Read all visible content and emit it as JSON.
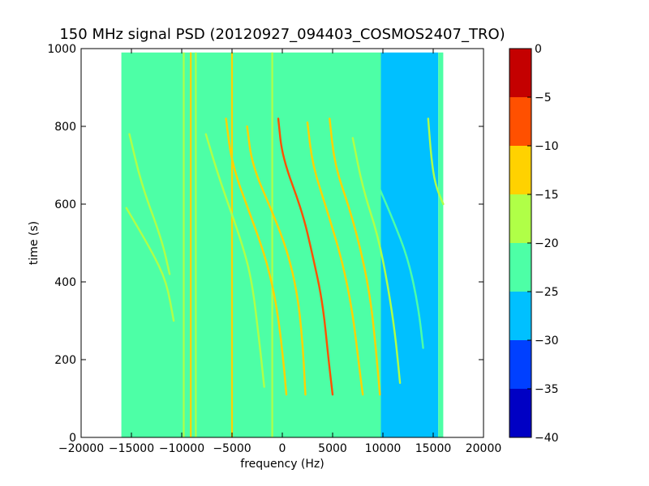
{
  "chart_data": {
    "type": "heatmap",
    "title": "150 MHz signal PSD (20120927_094403_COSMOS2407_TRO)",
    "xlabel": "frequency (Hz)",
    "ylabel": "time (s)",
    "xlim": [
      -20000,
      20000
    ],
    "ylim": [
      0,
      1000
    ],
    "x_ticks": [
      -20000,
      -15000,
      -10000,
      -5000,
      0,
      5000,
      10000,
      15000,
      20000
    ],
    "y_ticks": [
      0,
      200,
      400,
      600,
      800,
      1000
    ],
    "data_extent": {
      "x": [
        -16000,
        16000
      ],
      "y": [
        0,
        990
      ]
    },
    "grid": false,
    "colorbar": {
      "ticks": [
        0,
        -5,
        -10,
        -15,
        -20,
        -25,
        -30,
        -35,
        -40
      ],
      "range": [
        -40,
        0
      ],
      "levels": [
        {
          "min": -40,
          "max": -35,
          "color": "#0000c4"
        },
        {
          "min": -35,
          "max": -30,
          "color": "#0040ff"
        },
        {
          "min": -30,
          "max": -25,
          "color": "#00c0ff"
        },
        {
          "min": -25,
          "max": -20,
          "color": "#4dffa6"
        },
        {
          "min": -20,
          "max": -15,
          "color": "#b0ff47"
        },
        {
          "min": -15,
          "max": -10,
          "color": "#ffd200"
        },
        {
          "min": -10,
          "max": -5,
          "color": "#ff5000"
        },
        {
          "min": -5,
          "max": 0,
          "color": "#c40000"
        }
      ]
    },
    "background_regions": [
      {
        "x": [
          -16000,
          9800
        ],
        "value": -22.5
      },
      {
        "x": [
          9800,
          15500
        ],
        "value": -27.5
      },
      {
        "x": [
          15500,
          16000
        ],
        "value": -22.5
      }
    ],
    "vertical_lines": [
      {
        "x": -9800,
        "value": -17.5
      },
      {
        "x": -9100,
        "value": -12.5
      },
      {
        "x": -8600,
        "value": -17.5
      },
      {
        "x": -5000,
        "value": -12.5
      },
      {
        "x": -1000,
        "value": -17.5
      }
    ],
    "tracks": [
      {
        "points": [
          [
            -15500,
            590
          ],
          [
            -13000,
            480
          ],
          [
            -11500,
            400
          ],
          [
            -10800,
            300
          ]
        ],
        "value": -17.5
      },
      {
        "points": [
          [
            -15200,
            780
          ],
          [
            -14000,
            650
          ],
          [
            -12000,
            510
          ],
          [
            -11200,
            420
          ]
        ],
        "value": -17.5
      },
      {
        "points": [
          [
            -7600,
            780
          ],
          [
            -6200,
            660
          ],
          [
            -4000,
            500
          ],
          [
            -3000,
            400
          ],
          [
            -2300,
            250
          ],
          [
            -1800,
            130
          ]
        ],
        "value": -17.5
      },
      {
        "points": [
          [
            -5600,
            820
          ],
          [
            -5000,
            700
          ],
          [
            -3000,
            560
          ],
          [
            -1500,
            450
          ],
          [
            -500,
            330
          ],
          [
            100,
            200
          ],
          [
            400,
            110
          ]
        ],
        "value": -12.5
      },
      {
        "points": [
          [
            -3500,
            800
          ],
          [
            -3000,
            700
          ],
          [
            -1000,
            580
          ],
          [
            500,
            480
          ],
          [
            1500,
            370
          ],
          [
            2000,
            250
          ],
          [
            2300,
            110
          ]
        ],
        "value": -12.5
      },
      {
        "points": [
          [
            -400,
            820
          ],
          [
            0,
            720
          ],
          [
            2000,
            580
          ],
          [
            3000,
            470
          ],
          [
            4000,
            350
          ],
          [
            4600,
            200
          ],
          [
            5000,
            110
          ]
        ],
        "value": -7.5
      },
      {
        "points": [
          [
            2500,
            810
          ],
          [
            3000,
            700
          ],
          [
            4500,
            580
          ],
          [
            6000,
            450
          ],
          [
            7000,
            320
          ],
          [
            7700,
            170
          ],
          [
            8000,
            110
          ]
        ],
        "value": -12.5
      },
      {
        "points": [
          [
            4700,
            820
          ],
          [
            5200,
            700
          ],
          [
            6800,
            580
          ],
          [
            8000,
            460
          ],
          [
            8800,
            350
          ],
          [
            9300,
            230
          ],
          [
            9700,
            110
          ]
        ],
        "value": -12.5
      },
      {
        "points": [
          [
            7000,
            770
          ],
          [
            8000,
            640
          ],
          [
            9500,
            520
          ],
          [
            10500,
            390
          ],
          [
            11200,
            270
          ],
          [
            11700,
            140
          ]
        ],
        "value": -17.5
      },
      {
        "points": [
          [
            9500,
            650
          ],
          [
            11000,
            560
          ],
          [
            12500,
            460
          ],
          [
            13500,
            340
          ],
          [
            14000,
            230
          ]
        ],
        "value": -22.5
      },
      {
        "points": [
          [
            14500,
            820
          ],
          [
            14800,
            720
          ],
          [
            15200,
            650
          ],
          [
            16000,
            600
          ]
        ],
        "value": -17.5
      }
    ]
  }
}
